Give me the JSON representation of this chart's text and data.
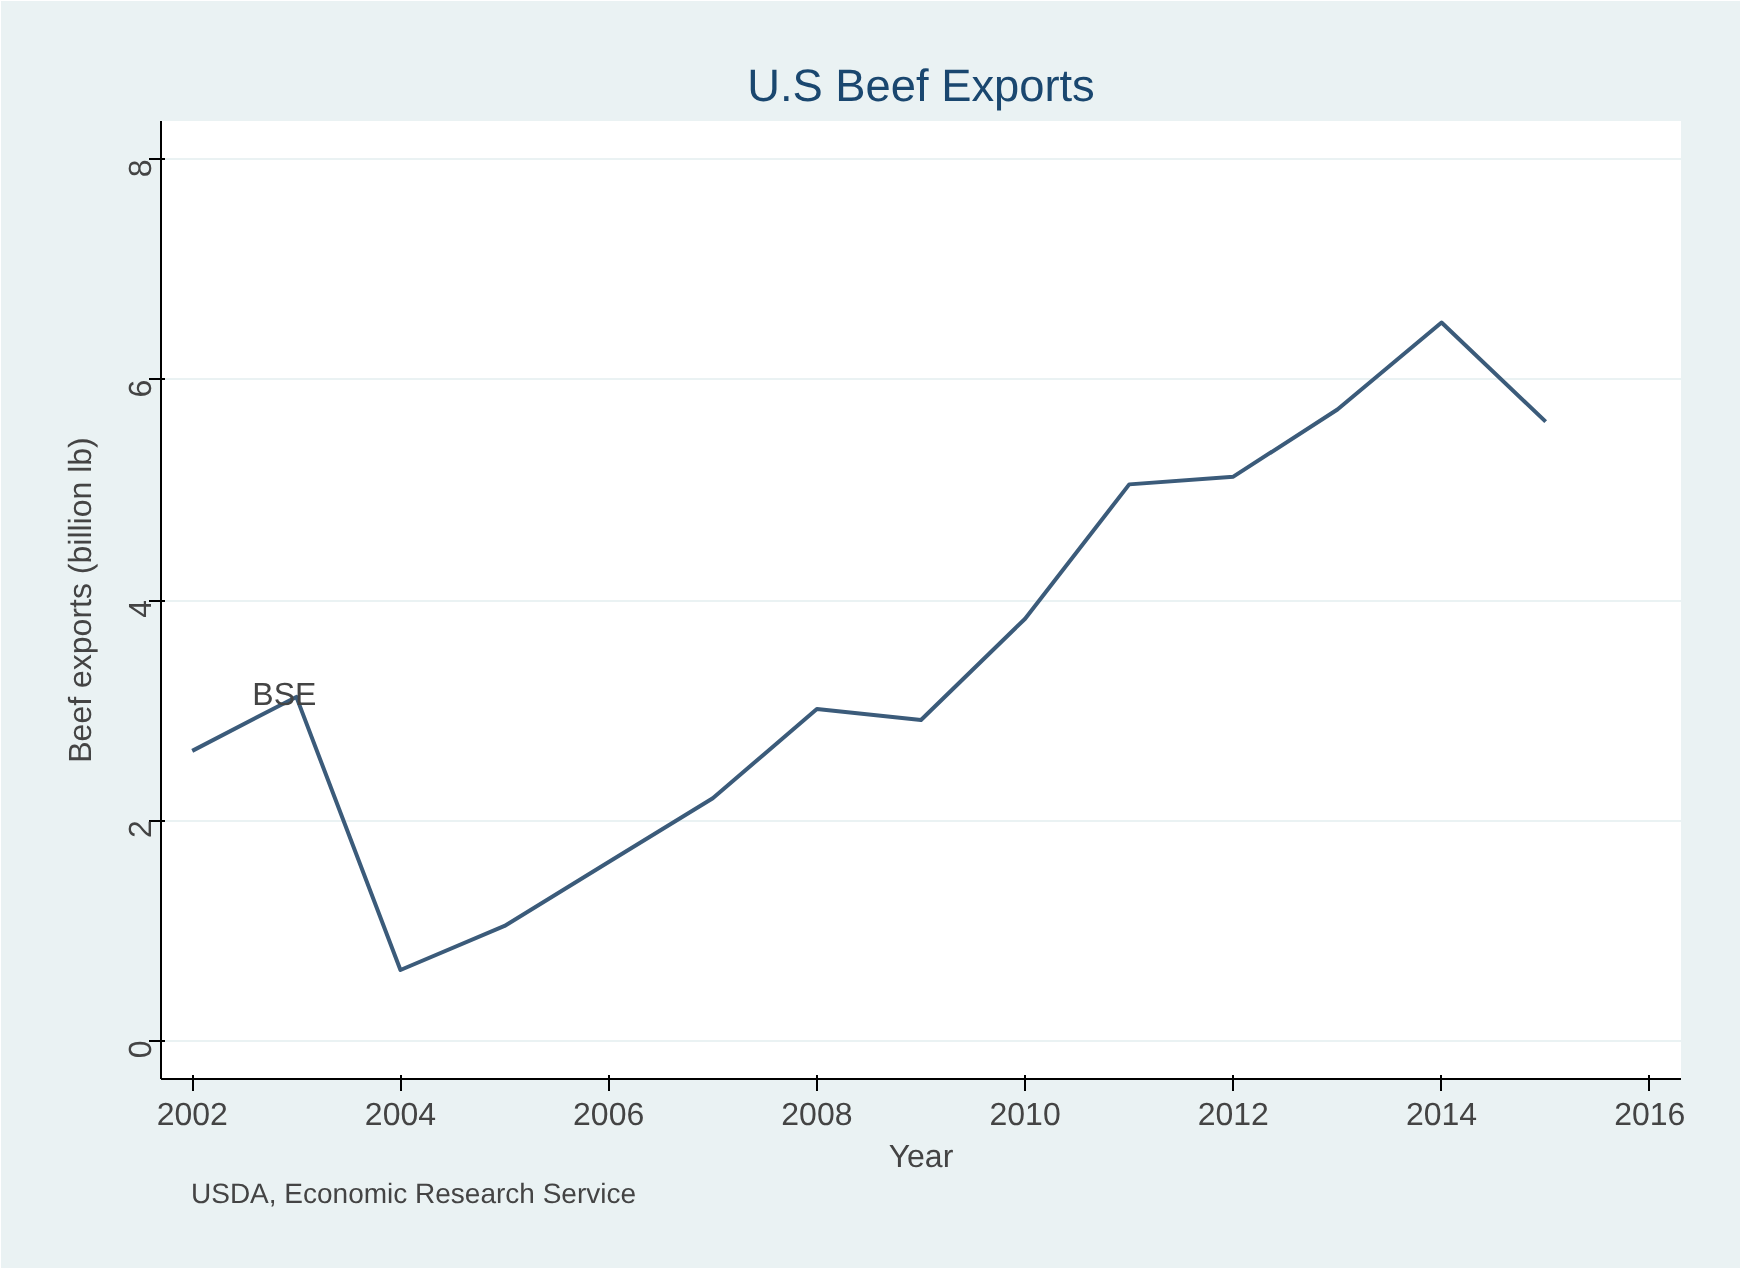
{
  "chart_data": {
    "type": "line",
    "title": "U.S Beef Exports",
    "xlabel": "Year",
    "ylabel": "Beef exports (billion lb)",
    "x": [
      2002,
      2003,
      2004,
      2005,
      2006,
      2007,
      2008,
      2009,
      2010,
      2011,
      2012,
      2013,
      2014,
      2015
    ],
    "series": [
      {
        "color": "#3b5b7a",
        "values": [
          2.63,
          3.12,
          0.64,
          1.04,
          1.62,
          2.2,
          3.01,
          2.91,
          3.83,
          5.05,
          5.12,
          5.73,
          6.52,
          5.62
        ]
      }
    ],
    "xlim": [
      2001.7,
      2016.3
    ],
    "xticks": [
      2002,
      2004,
      2006,
      2008,
      2010,
      2012,
      2014,
      2016
    ],
    "ylim": [
      -0.35,
      8.35
    ],
    "yticks": [
      0,
      2,
      4,
      6,
      8
    ],
    "grid": "y",
    "marker": "none",
    "line_style": "solid",
    "annotations": [
      {
        "text": "BSE",
        "x": 2003,
        "y": 3.12
      },
      "USDA, Economic Research Service"
    ]
  }
}
